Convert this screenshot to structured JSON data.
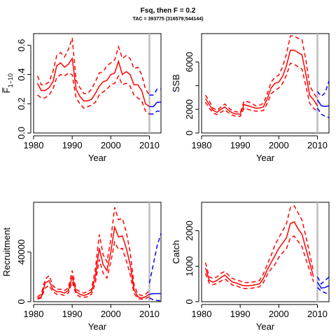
{
  "title": "Fsq, then F = 0.2",
  "subtitle": "TAC = 393775 (316579;544144)",
  "colors": {
    "historical": "#ff0000",
    "projection": "#0000ff",
    "marker": "#bebebe"
  },
  "chart_data": [
    {
      "type": "line",
      "id": "fbar",
      "xlabel": "Year",
      "ylabel": "F̅",
      "ylabel_sub": "1−10",
      "xlim": [
        1980,
        2013
      ],
      "ylim": [
        0,
        0.68
      ],
      "xticks": [
        1980,
        1990,
        2000,
        2010
      ],
      "yticks": [
        0.0,
        0.2,
        0.4,
        0.6
      ],
      "ytick_labels": [
        "0.0",
        "0.2",
        "0.4",
        "0.6"
      ],
      "vline": 2010,
      "historical": {
        "x": [
          1981,
          1982,
          1983,
          1984,
          1985,
          1986,
          1987,
          1988,
          1989,
          1990,
          1991,
          1992,
          1993,
          1994,
          1995,
          1996,
          1997,
          1998,
          1999,
          2000,
          2001,
          2002,
          2003,
          2004,
          2005,
          2006,
          2007,
          2008,
          2009,
          2010
        ],
        "mid": [
          0.34,
          0.29,
          0.29,
          0.31,
          0.35,
          0.46,
          0.48,
          0.45,
          0.47,
          0.51,
          0.3,
          0.25,
          0.22,
          0.22,
          0.23,
          0.27,
          0.32,
          0.35,
          0.36,
          0.4,
          0.41,
          0.49,
          0.4,
          0.42,
          0.4,
          0.33,
          0.33,
          0.29,
          0.2,
          0.18
        ],
        "upper": [
          0.39,
          0.33,
          0.33,
          0.35,
          0.42,
          0.53,
          0.55,
          0.52,
          0.57,
          0.65,
          0.36,
          0.31,
          0.27,
          0.27,
          0.3,
          0.35,
          0.41,
          0.42,
          0.46,
          0.48,
          0.5,
          0.59,
          0.51,
          0.53,
          0.51,
          0.44,
          0.45,
          0.4,
          0.3,
          0.26
        ],
        "lower": [
          0.26,
          0.24,
          0.24,
          0.26,
          0.3,
          0.38,
          0.4,
          0.39,
          0.41,
          0.4,
          0.24,
          0.2,
          0.17,
          0.18,
          0.19,
          0.21,
          0.26,
          0.28,
          0.3,
          0.33,
          0.34,
          0.39,
          0.33,
          0.34,
          0.32,
          0.26,
          0.24,
          0.22,
          0.15,
          0.13
        ]
      },
      "projection": {
        "x": [
          2010,
          2011,
          2012,
          2013
        ],
        "mid": [
          0.18,
          0.18,
          0.21,
          0.21
        ],
        "upper": [
          0.26,
          0.26,
          0.3,
          0.3
        ],
        "lower": [
          0.13,
          0.13,
          0.15,
          0.15
        ]
      }
    },
    {
      "type": "line",
      "id": "ssb",
      "xlabel": "Year",
      "ylabel": "SSB",
      "xlim": [
        1980,
        2013
      ],
      "ylim": [
        0,
        8400
      ],
      "xticks": [
        1980,
        1990,
        2000,
        2010
      ],
      "yticks": [
        0,
        2000,
        4000,
        6000
      ],
      "ytick_labels": [
        "0",
        "2000",
        "",
        "6000"
      ],
      "vline": 2010,
      "historical": {
        "x": [
          1981,
          1982,
          1983,
          1984,
          1985,
          1986,
          1987,
          1988,
          1989,
          1990,
          1991,
          1992,
          1993,
          1994,
          1995,
          1996,
          1997,
          1998,
          1999,
          2000,
          2001,
          2002,
          2003,
          2004,
          2005,
          2006,
          2007,
          2008,
          2009,
          2010
        ],
        "mid": [
          2900,
          2400,
          1900,
          1750,
          2000,
          2200,
          1900,
          1700,
          1600,
          1600,
          2400,
          2300,
          2200,
          2100,
          2100,
          2200,
          2900,
          3800,
          4200,
          4300,
          4800,
          5700,
          7000,
          7000,
          6800,
          6600,
          5000,
          3200,
          2800,
          2300
        ],
        "upper": [
          3200,
          2700,
          2100,
          1900,
          2200,
          2450,
          2150,
          1850,
          1800,
          1700,
          2700,
          2650,
          2500,
          2300,
          2350,
          2500,
          3300,
          4300,
          4700,
          4900,
          5600,
          6700,
          8200,
          8200,
          8000,
          7900,
          6200,
          4000,
          3400,
          2900
        ],
        "lower": [
          2600,
          2100,
          1700,
          1550,
          1750,
          1950,
          1700,
          1500,
          1400,
          1400,
          2100,
          2000,
          1900,
          1850,
          1850,
          1900,
          2500,
          3300,
          3600,
          3800,
          4200,
          4900,
          5900,
          5800,
          5600,
          5400,
          4000,
          2500,
          2100,
          1800
        ]
      },
      "projection": {
        "x": [
          2010,
          2011,
          2012,
          2013
        ],
        "mid": [
          2800,
          2300,
          2250,
          2300
        ],
        "upper": [
          3500,
          3100,
          3400,
          4400
        ],
        "lower": [
          2100,
          1600,
          1400,
          1300
        ]
      }
    },
    {
      "type": "line",
      "id": "recruitment",
      "xlabel": "Year",
      "ylabel": "Recruitment",
      "xlim": [
        1980,
        2013
      ],
      "ylim": [
        0,
        80000
      ],
      "xticks": [
        1980,
        1990,
        2000,
        2010
      ],
      "yticks": [
        0,
        40000
      ],
      "ytick_labels": [
        "0",
        "40000"
      ],
      "vline": 2010,
      "historical": {
        "x": [
          1981,
          1982,
          1983,
          1984,
          1985,
          1986,
          1987,
          1988,
          1989,
          1990,
          1991,
          1992,
          1993,
          1994,
          1995,
          1996,
          1997,
          1998,
          1999,
          2000,
          2001,
          2002,
          2003,
          2004,
          2005,
          2006,
          2007,
          2008,
          2009,
          2010
        ],
        "mid": [
          3000,
          4000,
          15000,
          17000,
          10000,
          8000,
          8000,
          7000,
          9000,
          20000,
          8000,
          6000,
          5000,
          6000,
          8000,
          20000,
          43000,
          30000,
          25000,
          40000,
          60000,
          52000,
          53000,
          43000,
          30000,
          10000,
          4000,
          3000,
          4000,
          6000
        ],
        "upper": [
          4000,
          6000,
          18000,
          21000,
          13000,
          10000,
          10000,
          9000,
          11000,
          25000,
          10000,
          8000,
          7000,
          8000,
          10000,
          26000,
          54000,
          38000,
          32000,
          50000,
          76000,
          66000,
          67000,
          56000,
          40000,
          14000,
          6000,
          5000,
          6000,
          9000
        ],
        "lower": [
          2000,
          3000,
          11000,
          13000,
          8000,
          6000,
          6000,
          5000,
          7000,
          16000,
          6000,
          4000,
          3500,
          4000,
          6000,
          15000,
          34000,
          23000,
          19000,
          32000,
          48000,
          42000,
          43000,
          33000,
          22000,
          7000,
          2500,
          2000,
          2500,
          4000
        ]
      },
      "projection": {
        "x": [
          2010,
          2011,
          2012,
          2013
        ],
        "mid": [
          6000,
          6500,
          6500,
          6500
        ],
        "upper": [
          15000,
          30000,
          45000,
          55000
        ],
        "lower": [
          3000,
          1500,
          1000,
          800
        ]
      }
    },
    {
      "type": "line",
      "id": "catch",
      "xlabel": "Year",
      "ylabel": "Catch",
      "xlim": [
        1980,
        2013
      ],
      "ylim": [
        0,
        2800
      ],
      "xticks": [
        1980,
        1990,
        2000,
        2010
      ],
      "yticks": [
        0,
        1000,
        2000
      ],
      "ytick_labels": [
        "0",
        "1000",
        "2000"
      ],
      "vline": 2010,
      "historical": {
        "x": [
          1981,
          1982,
          1983,
          1984,
          1985,
          1986,
          1987,
          1988,
          1989,
          1990,
          1991,
          1992,
          1993,
          1994,
          1995,
          1996,
          1997,
          1998,
          1999,
          2000,
          2001,
          2002,
          2003,
          2004,
          2005,
          2006,
          2007,
          2008,
          2009
        ],
        "mid": [
          950,
          600,
          550,
          600,
          680,
          750,
          650,
          550,
          530,
          480,
          450,
          450,
          460,
          480,
          500,
          650,
          900,
          1100,
          1300,
          1500,
          1650,
          1800,
          2200,
          2250,
          2050,
          1900,
          1500,
          1100,
          700
        ],
        "upper": [
          1100,
          700,
          650,
          700,
          800,
          850,
          750,
          650,
          620,
          580,
          540,
          540,
          550,
          570,
          600,
          780,
          1050,
          1300,
          1600,
          1800,
          2000,
          2200,
          2650,
          2700,
          2500,
          2300,
          1850,
          1350,
          850
        ],
        "lower": [
          800,
          520,
          480,
          520,
          580,
          640,
          560,
          470,
          450,
          400,
          370,
          370,
          380,
          400,
          420,
          540,
          760,
          920,
          1050,
          1250,
          1380,
          1500,
          1800,
          1850,
          1700,
          1550,
          1200,
          880,
          560
        ]
      },
      "projection": {
        "x": [
          2010,
          2011,
          2012,
          2013
        ],
        "mid": [
          550,
          380,
          400,
          450
        ],
        "upper": [
          700,
          500,
          600,
          700
        ],
        "lower": [
          400,
          300,
          250,
          200
        ]
      }
    }
  ]
}
